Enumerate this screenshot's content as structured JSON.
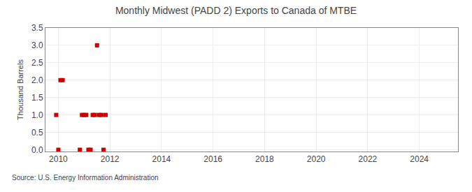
{
  "chart_data": {
    "type": "scatter",
    "title": "Monthly Midwest (PADD 2) Exports to Canada of MTBE",
    "ylabel": "Thousand Barrels",
    "annotations": [
      "Source: U.S. Energy Information Administration"
    ],
    "x": [
      2009.917,
      2010.0,
      2010.083,
      2010.167,
      2010.833,
      2010.917,
      2011.0,
      2011.083,
      2011.167,
      2011.25,
      2011.333,
      2011.417,
      2011.5,
      2011.583,
      2011.667,
      2011.75,
      2011.833
    ],
    "values": [
      1.0,
      0.0,
      2.0,
      2.0,
      0.0,
      1.0,
      1.0,
      1.0,
      0.0,
      0.0,
      1.0,
      1.0,
      3.0,
      1.0,
      1.0,
      0.0,
      1.0
    ],
    "color": "#cc0000",
    "marker": "square",
    "xlim": [
      2009.5,
      2025.5
    ],
    "xticks": [
      2010,
      2012,
      2014,
      2016,
      2018,
      2020,
      2022,
      2024
    ],
    "ylim": [
      -0.05,
      3.5
    ],
    "yticks": [
      {
        "value": 0,
        "label": "0.0"
      },
      0.5,
      {
        "value": 1,
        "label": "1.0"
      },
      1.5,
      {
        "value": 2,
        "label": "2.0"
      },
      2.5,
      {
        "value": 3,
        "label": "3.0"
      },
      3.5
    ],
    "grid": true
  }
}
